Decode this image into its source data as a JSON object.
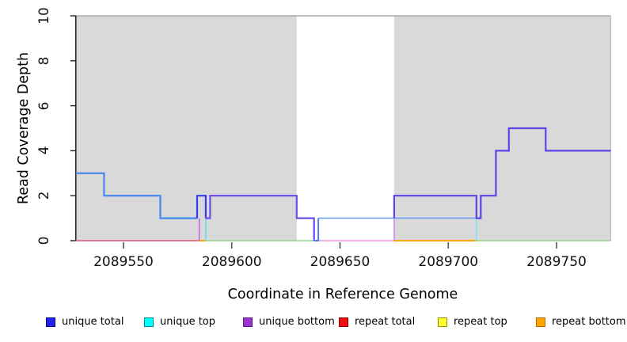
{
  "chart_data": {
    "type": "line",
    "subtype": "step-coverage-plot",
    "title": "",
    "xlabel": "Coordinate in Reference Genome",
    "ylabel": "Read Coverage Depth",
    "xlim": [
      2089528,
      2089775
    ],
    "ylim": [
      0,
      10
    ],
    "xticks": [
      2089550,
      2089600,
      2089650,
      2089700,
      2089750
    ],
    "yticks": [
      0,
      2,
      4,
      6,
      8,
      10
    ],
    "grid": "off",
    "legend_position": "bottom",
    "background_shading": {
      "color": "#D9D9D9",
      "border_color": "#A8A8A8",
      "gray_regions": [
        [
          2089528,
          2089630
        ],
        [
          2089675,
          2089775
        ]
      ],
      "white_gap": [
        2089630,
        2089675
      ]
    },
    "legend": [
      {
        "label": "unique total",
        "color": "#2222E6",
        "border": "#000099"
      },
      {
        "label": "unique top",
        "color": "#00FFFF",
        "border": "#008B8B"
      },
      {
        "label": "unique bottom",
        "color": "#9933CC",
        "border": "#5B1A8B"
      },
      {
        "label": "repeat total",
        "color": "#EE1111",
        "border": "#8B0000"
      },
      {
        "label": "repeat top",
        "color": "#FFFF33",
        "border": "#909000"
      },
      {
        "label": "repeat bottom",
        "color": "#FFA500",
        "border": "#B36B00"
      }
    ],
    "segments": [
      {
        "name": "repeat-total-zero-left",
        "color": "#E25572",
        "width": 1.6,
        "points": [
          [
            2089528,
            0
          ],
          [
            2089585,
            0
          ]
        ]
      },
      {
        "name": "repeat-bottom-zero-1",
        "color": "#FFA500",
        "width": 2.0,
        "points": [
          [
            2089585,
            0
          ],
          [
            2089588,
            0
          ]
        ]
      },
      {
        "name": "zero-line-green-1",
        "color": "#8CD98C",
        "width": 1.6,
        "points": [
          [
            2089588,
            0
          ],
          [
            2089638,
            0
          ]
        ]
      },
      {
        "name": "zero-line-pink-gap",
        "color": "#EE9AD6",
        "width": 1.5,
        "points": [
          [
            2089640,
            0
          ],
          [
            2089675,
            0
          ]
        ]
      },
      {
        "name": "repeat-bottom-zero-2",
        "color": "#FFA500",
        "width": 2.0,
        "points": [
          [
            2089675,
            0
          ],
          [
            2089713,
            0
          ]
        ]
      },
      {
        "name": "zero-line-green-2",
        "color": "#8CD98C",
        "width": 1.6,
        "points": [
          [
            2089713,
            0
          ],
          [
            2089775,
            0
          ]
        ]
      },
      {
        "name": "unique-bottom-vert-1",
        "color": "#C964D8",
        "width": 1.6,
        "points": [
          [
            2089585,
            0
          ],
          [
            2089585,
            1
          ]
        ]
      },
      {
        "name": "unique-top-vert-1",
        "color": "#66E0EE",
        "width": 1.8,
        "points": [
          [
            2089588,
            0
          ],
          [
            2089588,
            1
          ]
        ]
      },
      {
        "name": "unique-bottom-vert-2",
        "color": "#CE8CE8",
        "width": 1.6,
        "points": [
          [
            2089675,
            0
          ],
          [
            2089675,
            1
          ]
        ]
      },
      {
        "name": "unique-top-vert-2",
        "color": "#8EE0F0",
        "width": 1.8,
        "points": [
          [
            2089713,
            0
          ],
          [
            2089713,
            1
          ]
        ]
      },
      {
        "name": "unique-top-level-1",
        "color": "#6FA0EE",
        "width": 1.6,
        "points": [
          [
            2089640,
            1
          ],
          [
            2089713,
            1
          ]
        ]
      },
      {
        "name": "unique-total-left",
        "color": "#4487EE",
        "width": 2.2,
        "points": [
          [
            2089528,
            3
          ],
          [
            2089541,
            3
          ],
          [
            2089541,
            2
          ],
          [
            2089567,
            2
          ],
          [
            2089567,
            1
          ],
          [
            2089584,
            1
          ]
        ]
      },
      {
        "name": "unique-total-box",
        "color": "#3A3AE8",
        "width": 2.2,
        "points": [
          [
            2089584,
            1
          ],
          [
            2089584,
            2
          ],
          [
            2089588,
            2
          ],
          [
            2089588,
            1
          ]
        ]
      },
      {
        "name": "unique-bottom-mid",
        "color": "#6B4BE8",
        "width": 2.2,
        "points": [
          [
            2089588,
            1
          ],
          [
            2089590,
            1
          ],
          [
            2089590,
            2
          ],
          [
            2089630,
            2
          ],
          [
            2089630,
            1
          ],
          [
            2089638,
            1
          ],
          [
            2089638,
            0
          ]
        ]
      },
      {
        "name": "unique-total-dip",
        "color": "#4F7BEA",
        "width": 2.0,
        "points": [
          [
            2089638,
            0
          ],
          [
            2089640,
            0
          ],
          [
            2089640,
            1
          ]
        ]
      },
      {
        "name": "unique-bottom-right",
        "color": "#5B45E6",
        "width": 2.2,
        "points": [
          [
            2089675,
            1
          ],
          [
            2089675,
            2
          ],
          [
            2089713,
            2
          ],
          [
            2089713,
            1
          ],
          [
            2089715,
            1
          ],
          [
            2089715,
            2
          ],
          [
            2089722,
            2
          ],
          [
            2089722,
            4
          ],
          [
            2089728,
            4
          ],
          [
            2089728,
            5
          ],
          [
            2089745,
            5
          ],
          [
            2089745,
            4
          ],
          [
            2089775,
            4
          ]
        ]
      }
    ]
  }
}
